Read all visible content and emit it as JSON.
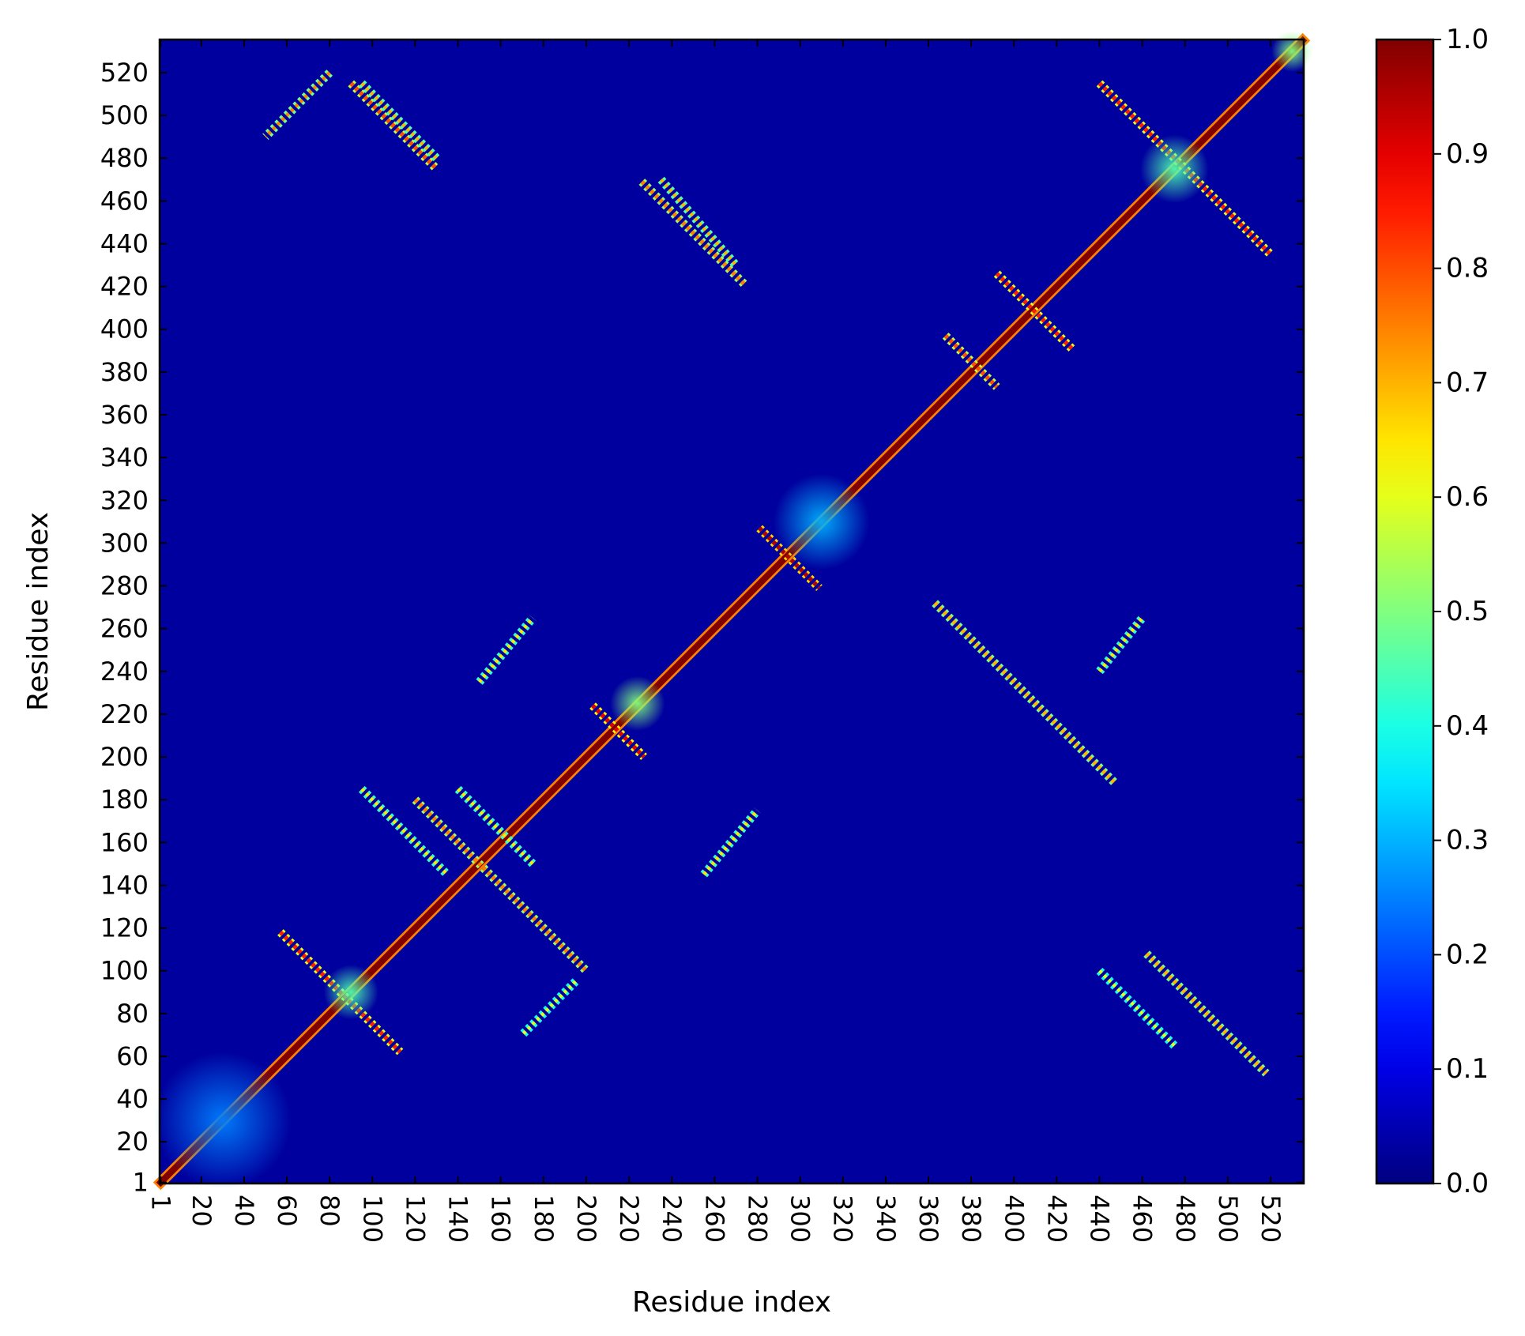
{
  "chart_data": {
    "type": "heatmap",
    "title": "",
    "xlabel": "Residue index",
    "ylabel": "Residue index",
    "n_residues": 535,
    "x_range": [
      1,
      535
    ],
    "y_range": [
      1,
      535
    ],
    "x_ticks": [
      "1",
      "20",
      "40",
      "60",
      "80",
      "100",
      "120",
      "140",
      "160",
      "180",
      "200",
      "220",
      "240",
      "260",
      "280",
      "300",
      "320",
      "340",
      "360",
      "380",
      "400",
      "420",
      "440",
      "460",
      "480",
      "500",
      "520"
    ],
    "y_ticks": [
      "1",
      "20",
      "40",
      "60",
      "80",
      "100",
      "120",
      "140",
      "160",
      "180",
      "200",
      "220",
      "240",
      "260",
      "280",
      "300",
      "320",
      "340",
      "360",
      "380",
      "400",
      "420",
      "440",
      "460",
      "480",
      "500",
      "520"
    ],
    "colorbar": {
      "colormap": "jet",
      "range": [
        0.0,
        1.0
      ],
      "ticks": [
        "0.0",
        "0.1",
        "0.2",
        "0.3",
        "0.4",
        "0.5",
        "0.6",
        "0.7",
        "0.8",
        "0.9",
        "1.0"
      ]
    },
    "background_value": 0.03,
    "features": [
      {
        "kind": "diagonal",
        "from": 1,
        "to": 535,
        "value": 1.0
      },
      {
        "kind": "anti_diagonal_band",
        "center": [
          85,
          90
        ],
        "half_length": 28,
        "value": 0.85
      },
      {
        "kind": "anti_diagonal_band",
        "center": [
          110,
          495
        ],
        "half_length": 20,
        "value": 0.8
      },
      {
        "kind": "anti_diagonal_band",
        "center": [
          215,
          212
        ],
        "half_length": 12,
        "value": 0.9
      },
      {
        "kind": "anti_diagonal_band",
        "center": [
          295,
          293
        ],
        "half_length": 14,
        "value": 0.95
      },
      {
        "kind": "anti_diagonal_band",
        "center": [
          410,
          408
        ],
        "half_length": 18,
        "value": 0.85
      },
      {
        "kind": "anti_diagonal_band",
        "center": [
          380,
          385
        ],
        "half_length": 12,
        "value": 0.8
      },
      {
        "kind": "anti_diagonal_band",
        "center": [
          480,
          475
        ],
        "half_length": 40,
        "value": 0.85
      },
      {
        "kind": "anti_diagonal_band",
        "center": [
          250,
          445
        ],
        "half_length": 24,
        "value": 0.75
      },
      {
        "kind": "anti_diagonal_band",
        "center": [
          160,
          140
        ],
        "half_length": 40,
        "value": 0.75
      },
      {
        "kind": "anti_diagonal_band",
        "center": [
          405,
          230
        ],
        "half_length": 42,
        "value": 0.7
      },
      {
        "kind": "anti_diagonal_band",
        "center": [
          490,
          80
        ],
        "half_length": 28,
        "value": 0.7
      },
      {
        "kind": "parallel_band",
        "from": [
          80,
          520
        ],
        "to": [
          50,
          490
        ],
        "value": 0.75
      },
      {
        "kind": "parallel_band",
        "from": [
          95,
          515
        ],
        "to": [
          130,
          480
        ],
        "value": 0.7
      },
      {
        "kind": "parallel_band",
        "from": [
          235,
          470
        ],
        "to": [
          270,
          430
        ],
        "value": 0.7
      },
      {
        "kind": "parallel_band",
        "from": [
          95,
          185
        ],
        "to": [
          135,
          145
        ],
        "value": 0.65
      },
      {
        "kind": "parallel_band",
        "from": [
          140,
          185
        ],
        "to": [
          175,
          150
        ],
        "value": 0.65
      },
      {
        "kind": "parallel_band",
        "from": [
          195,
          95
        ],
        "to": [
          170,
          70
        ],
        "value": 0.6
      },
      {
        "kind": "parallel_band",
        "from": [
          150,
          235
        ],
        "to": [
          175,
          265
        ],
        "value": 0.65
      },
      {
        "kind": "parallel_band",
        "from": [
          255,
          145
        ],
        "to": [
          280,
          175
        ],
        "value": 0.65
      },
      {
        "kind": "parallel_band",
        "from": [
          440,
          100
        ],
        "to": [
          475,
          65
        ],
        "value": 0.6
      },
      {
        "kind": "parallel_band",
        "from": [
          440,
          240
        ],
        "to": [
          460,
          265
        ],
        "value": 0.65
      },
      {
        "kind": "blob",
        "center": [
          224,
          225
        ],
        "radius": 8,
        "value": 0.5
      },
      {
        "kind": "blob",
        "center": [
          90,
          90
        ],
        "radius": 8,
        "value": 0.45
      },
      {
        "kind": "blob",
        "center": [
          475,
          475
        ],
        "radius": 10,
        "value": 0.45
      },
      {
        "kind": "blob",
        "center": [
          310,
          310
        ],
        "radius": 14,
        "value": 0.3
      },
      {
        "kind": "blob",
        "center": [
          530,
          530
        ],
        "radius": 6,
        "value": 0.5
      },
      {
        "kind": "blob",
        "center": [
          30,
          30
        ],
        "radius": 20,
        "value": 0.25
      }
    ]
  }
}
